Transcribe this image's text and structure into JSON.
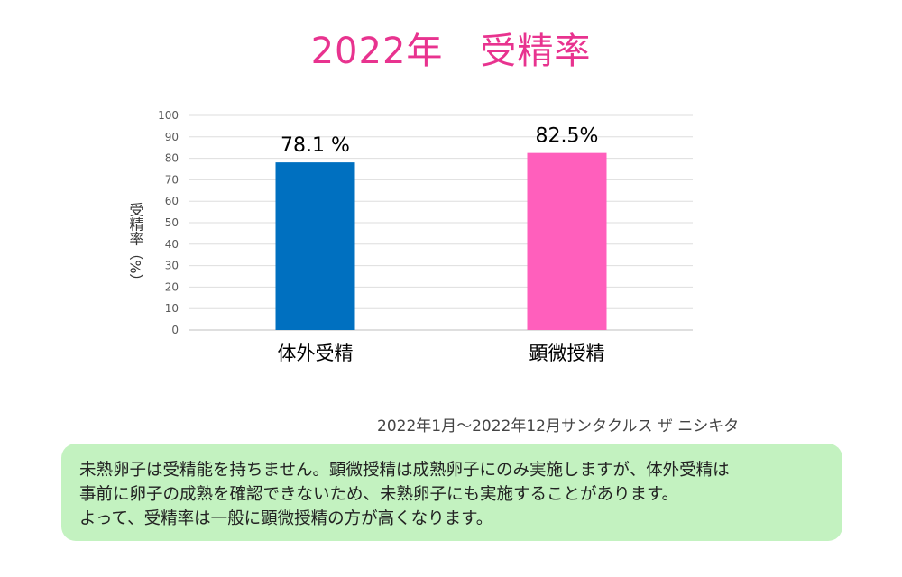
{
  "title": "2022年　受精率",
  "source": "2022年1月～2022年12月サンタクルス ザ ニシキタ",
  "note_lines": [
    "未熟卵子は受精能を持ちません。顕微授精は成熟卵子にのみ実施しますが、体外受精は",
    "事前に卵子の成熟を確認できないため、未熟卵子にも実施することがあります。",
    "よって、受精率は一般に顕微授精の方が高くなります。"
  ],
  "colors": {
    "title": "#e8338f",
    "note_background": "#c3f2c0"
  },
  "chart_data": {
    "type": "bar",
    "categories": [
      "体外受精",
      "顕微授精"
    ],
    "values": [
      78.1,
      82.5
    ],
    "data_labels": [
      "78.1 %",
      "82.5%"
    ],
    "bar_colors": [
      "#0070c0",
      "#ff5fbc"
    ],
    "title": "",
    "xlabel": "",
    "ylabel": "受精率（%）",
    "ylim": [
      0,
      100
    ],
    "yticks": [
      0,
      10,
      20,
      30,
      40,
      50,
      60,
      70,
      80,
      90,
      100
    ],
    "grid": true,
    "legend": "none"
  }
}
